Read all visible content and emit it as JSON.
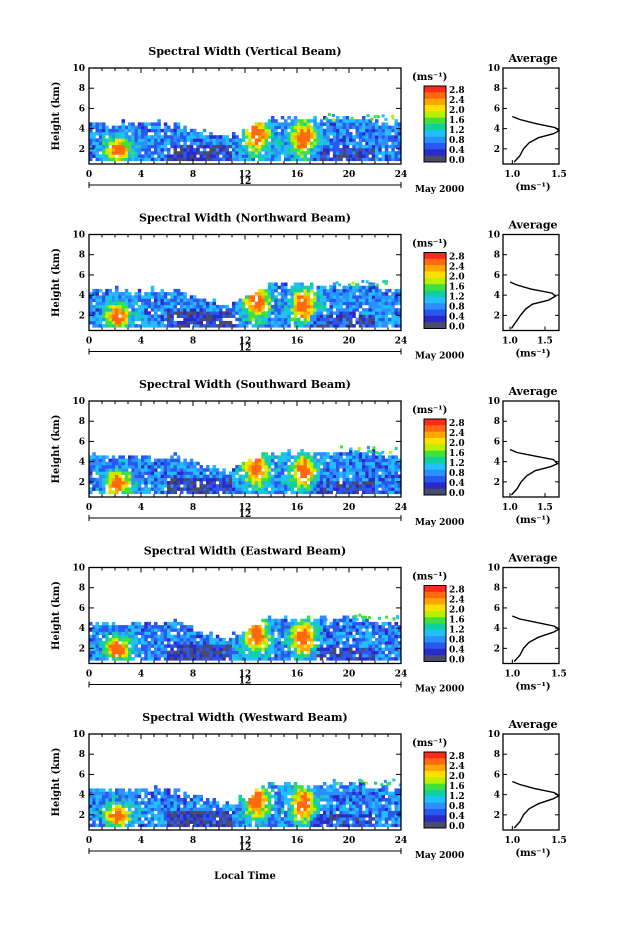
{
  "figure": {
    "xlabel": "Local Time",
    "colorbar_unit": "(ms⁻¹)",
    "colorbar_ticks": [
      "2.8",
      "2.4",
      "2.0",
      "1.6",
      "1.2",
      "0.8",
      "0.4",
      "0.0"
    ],
    "colorbar_colors": [
      "#ff2a1a",
      "#ff6a10",
      "#ffa600",
      "#ffe000",
      "#b8f000",
      "#40e040",
      "#10d0a0",
      "#20c0ff",
      "#2a90ff",
      "#2858f0",
      "#2a2ac8",
      "#4a4a6a"
    ],
    "date_label": "May 2000",
    "day_label": "12",
    "average_title": "Average",
    "average_xlabel": "(ms⁻¹)"
  },
  "chart_data": [
    {
      "type": "heatmap",
      "title": "Spectral Width (Vertical Beam)",
      "ylabel": "Height (km)",
      "xlim": [
        0,
        24
      ],
      "ylim": [
        0.5,
        10
      ],
      "xticks": [
        0,
        4,
        8,
        12,
        16,
        20,
        24
      ],
      "yticks": [
        2,
        4,
        6,
        8,
        10
      ],
      "colorbar_range": [
        0.0,
        3.0
      ],
      "average_profile": {
        "title": "Average",
        "xlim": [
          0.9,
          1.5
        ],
        "xtick_labels": [
          "1.0",
          "1.5"
        ],
        "yticks": [
          2,
          4,
          6,
          8,
          10
        ],
        "points": [
          [
            1.02,
            0.7
          ],
          [
            1.08,
            1.3
          ],
          [
            1.12,
            2.0
          ],
          [
            1.18,
            2.6
          ],
          [
            1.28,
            3.1
          ],
          [
            1.44,
            3.5
          ],
          [
            1.5,
            3.8
          ],
          [
            1.46,
            4.1
          ],
          [
            1.25,
            4.5
          ],
          [
            1.08,
            4.9
          ],
          [
            1.0,
            5.2
          ]
        ]
      }
    },
    {
      "type": "heatmap",
      "title": "Spectral Width (Northward Beam)",
      "ylabel": "Height (km)",
      "xlim": [
        0,
        24
      ],
      "ylim": [
        0.5,
        10
      ],
      "xticks": [
        0,
        4,
        8,
        12,
        16,
        20,
        24
      ],
      "yticks": [
        2,
        4,
        6,
        8,
        10
      ],
      "colorbar_range": [
        0.0,
        3.0
      ],
      "average_profile": {
        "title": "Average",
        "xlim": [
          0.9,
          1.7
        ],
        "xtick_labels": [
          "1.0",
          "1.5"
        ],
        "yticks": [
          2,
          4,
          6,
          8,
          10
        ],
        "points": [
          [
            1.02,
            0.7
          ],
          [
            1.08,
            1.3
          ],
          [
            1.15,
            2.0
          ],
          [
            1.22,
            2.6
          ],
          [
            1.32,
            3.1
          ],
          [
            1.55,
            3.5
          ],
          [
            1.65,
            3.9
          ],
          [
            1.6,
            4.2
          ],
          [
            1.3,
            4.6
          ],
          [
            1.1,
            5.0
          ],
          [
            1.0,
            5.3
          ]
        ]
      }
    },
    {
      "type": "heatmap",
      "title": "Spectral Width (Southward Beam)",
      "ylabel": "Height (km)",
      "xlim": [
        0,
        24
      ],
      "ylim": [
        0.5,
        10
      ],
      "xticks": [
        0,
        4,
        8,
        12,
        16,
        20,
        24
      ],
      "yticks": [
        2,
        4,
        6,
        8,
        10
      ],
      "colorbar_range": [
        0.0,
        3.0
      ],
      "average_profile": {
        "title": "Average",
        "xlim": [
          0.9,
          1.7
        ],
        "xtick_labels": [
          "1.0",
          "1.5"
        ],
        "yticks": [
          2,
          4,
          6,
          8,
          10
        ],
        "points": [
          [
            1.02,
            0.7
          ],
          [
            1.1,
            1.3
          ],
          [
            1.16,
            2.0
          ],
          [
            1.24,
            2.6
          ],
          [
            1.36,
            3.1
          ],
          [
            1.58,
            3.5
          ],
          [
            1.68,
            3.8
          ],
          [
            1.62,
            4.2
          ],
          [
            1.32,
            4.6
          ],
          [
            1.1,
            4.9
          ],
          [
            1.0,
            5.2
          ]
        ]
      }
    },
    {
      "type": "heatmap",
      "title": "Spectral Width (Eastward Beam)",
      "ylabel": "Height (km)",
      "xlim": [
        0,
        24
      ],
      "ylim": [
        0.5,
        10
      ],
      "xticks": [
        0,
        4,
        8,
        12,
        16,
        20,
        24
      ],
      "yticks": [
        2,
        4,
        6,
        8,
        10
      ],
      "colorbar_range": [
        0.0,
        3.0
      ],
      "average_profile": {
        "title": "Average",
        "xlim": [
          0.9,
          1.5
        ],
        "xtick_labels": [
          "1.0",
          "1.5"
        ],
        "yticks": [
          2,
          4,
          6,
          8,
          10
        ],
        "points": [
          [
            1.02,
            0.7
          ],
          [
            1.08,
            1.3
          ],
          [
            1.12,
            2.0
          ],
          [
            1.18,
            2.6
          ],
          [
            1.28,
            3.1
          ],
          [
            1.44,
            3.6
          ],
          [
            1.5,
            3.9
          ],
          [
            1.45,
            4.2
          ],
          [
            1.24,
            4.6
          ],
          [
            1.08,
            4.9
          ],
          [
            1.0,
            5.2
          ]
        ]
      }
    },
    {
      "type": "heatmap",
      "title": "Spectral Width (Westward Beam)",
      "ylabel": "Height (km)",
      "xlim": [
        0,
        24
      ],
      "ylim": [
        0.5,
        10
      ],
      "xticks": [
        0,
        4,
        8,
        12,
        16,
        20,
        24
      ],
      "yticks": [
        2,
        4,
        6,
        8,
        10
      ],
      "colorbar_range": [
        0.0,
        3.0
      ],
      "average_profile": {
        "title": "Average",
        "xlim": [
          0.9,
          1.5
        ],
        "xtick_labels": [
          "1.0",
          "1.5"
        ],
        "yticks": [
          2,
          4,
          6,
          8,
          10
        ],
        "points": [
          [
            1.02,
            0.7
          ],
          [
            1.08,
            1.3
          ],
          [
            1.12,
            2.0
          ],
          [
            1.18,
            2.6
          ],
          [
            1.28,
            3.1
          ],
          [
            1.44,
            3.6
          ],
          [
            1.5,
            3.9
          ],
          [
            1.45,
            4.2
          ],
          [
            1.24,
            4.6
          ],
          [
            1.08,
            5.0
          ],
          [
            1.0,
            5.3
          ]
        ]
      }
    }
  ]
}
